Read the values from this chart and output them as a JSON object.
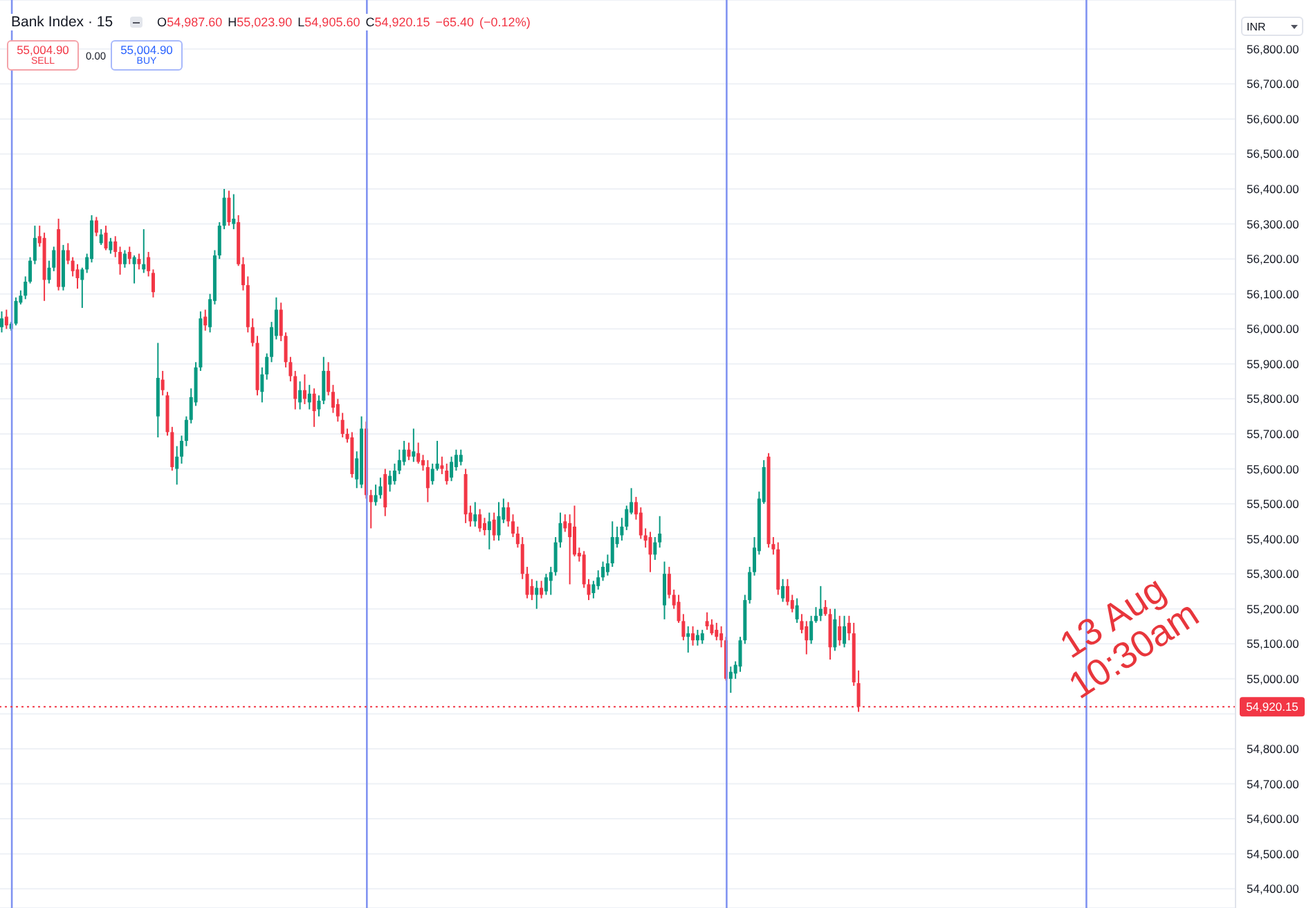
{
  "chart_data": {
    "type": "candlestick",
    "title": "Bank Index · 15",
    "ylabel": "INR",
    "categories": [
      null,
      null,
      null,
      null,
      null,
      null,
      null,
      null,
      null,
      null,
      null,
      null,
      null,
      null,
      null,
      null,
      null,
      null,
      null,
      null,
      null,
      null,
      null,
      null,
      null,
      null,
      null,
      null,
      null,
      null,
      null,
      null,
      null,
      null,
      null,
      null,
      null,
      null,
      null,
      null,
      null,
      null,
      null,
      null,
      null,
      null,
      null,
      null,
      null,
      null,
      null,
      null,
      null,
      null,
      null,
      null,
      null,
      null,
      null,
      null,
      null,
      null,
      null,
      null,
      null,
      null,
      null,
      null,
      null,
      null,
      null,
      null,
      null,
      null,
      null,
      null,
      null,
      null,
      null,
      null,
      null,
      null,
      null,
      null,
      null,
      null,
      null,
      null,
      null,
      null,
      null,
      null,
      null,
      null,
      null,
      null,
      null,
      null,
      null,
      null,
      null,
      null,
      null,
      null,
      null,
      null,
      null,
      null,
      null,
      null,
      null,
      null,
      null,
      null,
      null,
      null,
      null,
      null,
      null,
      null,
      null,
      null,
      null,
      null,
      null,
      null,
      null,
      null,
      null,
      null,
      null,
      null,
      null,
      null,
      null,
      null,
      null,
      null,
      null,
      null,
      null,
      null,
      null,
      null,
      null,
      null,
      null,
      null,
      null,
      null,
      null,
      null,
      null,
      null,
      null,
      null,
      null,
      null,
      null,
      null,
      null,
      null,
      null,
      null,
      null,
      null,
      null,
      null,
      null,
      null,
      null,
      null,
      null,
      null,
      null,
      null,
      null,
      null,
      null,
      null,
      null,
      null,
      null,
      null,
      null,
      null,
      null,
      null,
      null,
      null,
      null,
      null,
      null,
      null,
      null,
      null,
      null,
      null,
      null,
      null,
      null,
      null,
      null,
      null,
      null,
      null,
      null,
      null,
      null,
      null,
      null,
      null,
      null,
      null,
      null,
      null,
      null,
      null,
      null,
      null,
      null,
      null,
      null,
      null,
      null,
      null,
      null,
      null,
      null,
      null,
      null,
      null,
      null,
      null,
      null,
      null,
      null,
      null,
      null,
      null,
      null,
      null,
      null,
      null,
      null,
      null,
      null,
      null,
      null,
      null,
      null,
      null,
      null,
      null,
      null,
      null,
      null,
      null,
      null,
      null,
      null
    ],
    "ohlc": [
      [
        56005,
        56050,
        55990,
        56030
      ],
      [
        56035,
        56055,
        56000,
        56010
      ],
      [
        56000,
        56020,
        55995,
        56015
      ],
      [
        56015,
        56090,
        56010,
        56080
      ],
      [
        56075,
        56110,
        56070,
        56095
      ],
      [
        56095,
        56150,
        56085,
        56135
      ],
      [
        56135,
        56205,
        56130,
        56195
      ],
      [
        56195,
        56295,
        56185,
        56260
      ],
      [
        56265,
        56295,
        56235,
        56245
      ],
      [
        56260,
        56275,
        56080,
        56140
      ],
      [
        56140,
        56195,
        56130,
        56175
      ],
      [
        56175,
        56235,
        56165,
        56225
      ],
      [
        56285,
        56315,
        56110,
        56120
      ],
      [
        56120,
        56240,
        56110,
        56225
      ],
      [
        56225,
        56245,
        56185,
        56195
      ],
      [
        56195,
        56205,
        56150,
        56165
      ],
      [
        56170,
        56185,
        56115,
        56145
      ],
      [
        56140,
        56175,
        56060,
        56170
      ],
      [
        56170,
        56215,
        56160,
        56205
      ],
      [
        56200,
        56325,
        56190,
        56310
      ],
      [
        56310,
        56320,
        56265,
        56275
      ],
      [
        56245,
        56285,
        56240,
        56270
      ],
      [
        56275,
        56295,
        56225,
        56230
      ],
      [
        56225,
        56260,
        56215,
        56250
      ],
      [
        56250,
        56265,
        56205,
        56220
      ],
      [
        56220,
        56235,
        56155,
        56185
      ],
      [
        56185,
        56225,
        56175,
        56215
      ],
      [
        56220,
        56235,
        56185,
        56200
      ],
      [
        56185,
        56210,
        56130,
        56205
      ],
      [
        56200,
        56215,
        56170,
        56185
      ],
      [
        56170,
        56285,
        56160,
        56185
      ],
      [
        56205,
        56220,
        56150,
        56165
      ],
      [
        56160,
        56170,
        56090,
        56105
      ],
      [
        55750,
        55960,
        55690,
        55860
      ],
      [
        55855,
        55880,
        55810,
        55825
      ],
      [
        55810,
        55820,
        55695,
        55705
      ],
      [
        55705,
        55720,
        55595,
        55605
      ],
      [
        55600,
        55665,
        55555,
        55635
      ],
      [
        55635,
        55695,
        55615,
        55680
      ],
      [
        55680,
        55750,
        55665,
        55740
      ],
      [
        55740,
        55830,
        55730,
        55805
      ],
      [
        55790,
        55905,
        55780,
        55890
      ],
      [
        55890,
        56050,
        55880,
        56030
      ],
      [
        56035,
        56055,
        55995,
        56010
      ],
      [
        56005,
        56100,
        55990,
        56085
      ],
      [
        56080,
        56225,
        56070,
        56210
      ],
      [
        56210,
        56305,
        56200,
        56295
      ],
      [
        56295,
        56400,
        56285,
        56375
      ],
      [
        56375,
        56395,
        56295,
        56305
      ],
      [
        56300,
        56385,
        56285,
        56315
      ],
      [
        56305,
        56325,
        56180,
        56185
      ],
      [
        56185,
        56205,
        56110,
        56125
      ],
      [
        56125,
        56150,
        55990,
        56005
      ],
      [
        56005,
        56030,
        55950,
        55960
      ],
      [
        55960,
        55980,
        55810,
        55825
      ],
      [
        55820,
        55890,
        55790,
        55870
      ],
      [
        55870,
        55930,
        55855,
        55920
      ],
      [
        55920,
        56020,
        55905,
        56005
      ],
      [
        55980,
        56090,
        55970,
        56055
      ],
      [
        56055,
        56075,
        55965,
        55980
      ],
      [
        55980,
        55990,
        55890,
        55905
      ],
      [
        55905,
        55920,
        55850,
        55865
      ],
      [
        55865,
        55880,
        55770,
        55800
      ],
      [
        55790,
        55850,
        55770,
        55825
      ],
      [
        55825,
        55870,
        55785,
        55800
      ],
      [
        55790,
        55840,
        55770,
        55815
      ],
      [
        55815,
        55830,
        55720,
        55765
      ],
      [
        55770,
        55810,
        55750,
        55795
      ],
      [
        55795,
        55920,
        55785,
        55880
      ],
      [
        55880,
        55905,
        55810,
        55820
      ],
      [
        55820,
        55840,
        55760,
        55775
      ],
      [
        55785,
        55800,
        55735,
        55750
      ],
      [
        55740,
        55760,
        55690,
        55700
      ],
      [
        55700,
        55715,
        55675,
        55685
      ],
      [
        55690,
        55705,
        55575,
        55585
      ],
      [
        55570,
        55650,
        55545,
        55630
      ],
      [
        55555,
        55750,
        55545,
        55715
      ],
      [
        55715,
        55735,
        55515,
        55525
      ],
      [
        55525,
        55540,
        55430,
        55505
      ],
      [
        55505,
        55555,
        55495,
        55525
      ],
      [
        55525,
        55575,
        55515,
        55550
      ],
      [
        55585,
        55600,
        55465,
        55490
      ],
      [
        55555,
        55595,
        55535,
        55580
      ],
      [
        55565,
        55615,
        55555,
        55595
      ],
      [
        55595,
        55655,
        55585,
        55625
      ],
      [
        55620,
        55680,
        55610,
        55655
      ],
      [
        55655,
        55675,
        55625,
        55635
      ],
      [
        55635,
        55715,
        55620,
        55650
      ],
      [
        55645,
        55675,
        55615,
        55620
      ],
      [
        55625,
        55640,
        55595,
        55610
      ],
      [
        55605,
        55625,
        55505,
        55545
      ],
      [
        55565,
        55615,
        55555,
        55600
      ],
      [
        55600,
        55680,
        55595,
        55615
      ],
      [
        55610,
        55635,
        55585,
        55600
      ],
      [
        55595,
        55615,
        55555,
        55565
      ],
      [
        55575,
        55635,
        55565,
        55620
      ],
      [
        55605,
        55655,
        55595,
        55640
      ],
      [
        55620,
        55655,
        55610,
        55640
      ],
      [
        55585,
        55600,
        55445,
        55470
      ],
      [
        55475,
        55495,
        55435,
        55450
      ],
      [
        55450,
        55505,
        55435,
        55470
      ],
      [
        55470,
        55485,
        55420,
        55430
      ],
      [
        55445,
        55460,
        55410,
        55425
      ],
      [
        55425,
        55475,
        55370,
        55450
      ],
      [
        55455,
        55475,
        55395,
        55410
      ],
      [
        55410,
        55505,
        55395,
        55465
      ],
      [
        55455,
        55515,
        55445,
        55490
      ],
      [
        55490,
        55505,
        55435,
        55450
      ],
      [
        55450,
        55470,
        55405,
        55415
      ],
      [
        55415,
        55435,
        55375,
        55385
      ],
      [
        55385,
        55405,
        55285,
        55300
      ],
      [
        55300,
        55320,
        55230,
        55240
      ],
      [
        55265,
        55285,
        55225,
        55240
      ],
      [
        55240,
        55280,
        55200,
        55260
      ],
      [
        55260,
        55280,
        55230,
        55240
      ],
      [
        55250,
        55300,
        55240,
        55290
      ],
      [
        55280,
        55320,
        55240,
        55305
      ],
      [
        55305,
        55405,
        55295,
        55390
      ],
      [
        55390,
        55475,
        55375,
        55445
      ],
      [
        55450,
        55470,
        55420,
        55430
      ],
      [
        55445,
        55470,
        55270,
        55405
      ],
      [
        55435,
        55495,
        55350,
        55355
      ],
      [
        55360,
        55375,
        55335,
        55350
      ],
      [
        55355,
        55365,
        55260,
        55270
      ],
      [
        55270,
        55285,
        55225,
        55240
      ],
      [
        55245,
        55280,
        55230,
        55270
      ],
      [
        55265,
        55310,
        55255,
        55290
      ],
      [
        55290,
        55335,
        55280,
        55320
      ],
      [
        55305,
        55355,
        55295,
        55330
      ],
      [
        55330,
        55450,
        55320,
        55405
      ],
      [
        55385,
        55435,
        55375,
        55405
      ],
      [
        55410,
        55460,
        55395,
        55435
      ],
      [
        55435,
        55495,
        55425,
        55485
      ],
      [
        55475,
        55545,
        55470,
        55505
      ],
      [
        55505,
        55520,
        55455,
        55470
      ],
      [
        55475,
        55490,
        55400,
        55410
      ],
      [
        55410,
        55430,
        55375,
        55395
      ],
      [
        55405,
        55420,
        55305,
        55355
      ],
      [
        55355,
        55405,
        55340,
        55390
      ],
      [
        55390,
        55465,
        55375,
        55415
      ],
      [
        55210,
        55335,
        55170,
        55300
      ],
      [
        55300,
        55320,
        55230,
        55240
      ],
      [
        55240,
        55255,
        55200,
        55210
      ],
      [
        55220,
        55240,
        55160,
        55165
      ],
      [
        55165,
        55185,
        55110,
        55120
      ],
      [
        55120,
        55150,
        55075,
        55130
      ],
      [
        55130,
        55150,
        55095,
        55110
      ],
      [
        55110,
        55140,
        55095,
        55125
      ],
      [
        55110,
        55140,
        55100,
        55130
      ],
      [
        55165,
        55190,
        55140,
        55150
      ],
      [
        55155,
        55170,
        55125,
        55130
      ],
      [
        55140,
        55160,
        55110,
        55120
      ],
      [
        55130,
        55150,
        55090,
        55110
      ],
      [
        55110,
        55120,
        54995,
        55000
      ],
      [
        55000,
        55035,
        54960,
        55020
      ],
      [
        55015,
        55050,
        55000,
        55040
      ],
      [
        55035,
        55120,
        55020,
        55110
      ],
      [
        55110,
        55240,
        55100,
        55225
      ],
      [
        55225,
        55320,
        55215,
        55305
      ],
      [
        55305,
        55405,
        55295,
        55375
      ],
      [
        55365,
        55535,
        55355,
        55515
      ],
      [
        55505,
        55625,
        55500,
        55605
      ],
      [
        55635,
        55645,
        55375,
        55385
      ],
      [
        55385,
        55405,
        55355,
        55370
      ],
      [
        55370,
        55390,
        55240,
        55255
      ],
      [
        55230,
        55285,
        55220,
        55265
      ],
      [
        55265,
        55285,
        55210,
        55220
      ],
      [
        55225,
        55240,
        55190,
        55200
      ],
      [
        55170,
        55230,
        55160,
        55210
      ],
      [
        55165,
        55185,
        55130,
        55140
      ],
      [
        55150,
        55165,
        55070,
        55110
      ],
      [
        55110,
        55180,
        55100,
        55165
      ],
      [
        55165,
        55205,
        55160,
        55180
      ],
      [
        55180,
        55265,
        55165,
        55200
      ],
      [
        55205,
        55225,
        55180,
        55185
      ],
      [
        55185,
        55200,
        55055,
        55090
      ],
      [
        55090,
        55200,
        55080,
        55170
      ],
      [
        55150,
        55180,
        55095,
        55110
      ],
      [
        55100,
        55180,
        55090,
        55150
      ],
      [
        55160,
        55180,
        55110,
        55130
      ],
      [
        55130,
        55160,
        54980,
        54990
      ],
      [
        54987.6,
        55023.9,
        54905.6,
        54920.15
      ],
      null,
      null,
      null,
      null,
      null,
      null,
      null,
      null,
      null,
      null,
      null,
      null,
      null,
      null,
      null,
      null,
      null,
      null,
      null,
      null,
      null,
      null,
      null,
      null,
      null,
      null,
      null,
      null,
      null,
      null,
      null,
      null,
      null,
      null,
      null,
      null,
      null,
      null,
      null,
      null,
      null,
      null,
      null,
      null,
      null,
      null,
      null,
      null,
      null,
      null,
      null,
      null,
      null,
      null,
      null,
      null,
      null,
      null,
      null,
      null,
      null,
      null,
      null,
      null,
      null,
      null,
      null,
      null,
      null,
      null,
      null,
      null,
      null,
      null,
      null,
      null,
      null,
      null,
      null
    ],
    "colors": [
      "#089981",
      "#f23645",
      "#089981",
      "#089981",
      "#089981",
      "#089981",
      "#089981",
      "#089981",
      "#f23645",
      "#f23645",
      "#089981",
      "#089981",
      "#f23645",
      "#089981",
      "#f23645",
      "#f23645",
      "#f23645",
      "#089981",
      "#089981",
      "#089981",
      "#f23645",
      "#089981",
      "#f23645",
      "#089981",
      "#f23645",
      "#f23645",
      "#089981",
      "#f23645",
      "#089981",
      "#f23645",
      "#089981",
      "#f23645",
      "#f23645",
      "#089981",
      "#f23645",
      "#f23645",
      "#f23645",
      "#089981",
      "#089981",
      "#089981",
      "#089981",
      "#089981",
      "#089981",
      "#f23645",
      "#089981",
      "#089981",
      "#089981",
      "#089981",
      "#f23645",
      "#089981",
      "#f23645",
      "#f23645",
      "#f23645",
      "#f23645",
      "#f23645",
      "#089981",
      "#089981",
      "#089981",
      "#089981",
      "#f23645",
      "#f23645",
      "#f23645",
      "#f23645",
      "#089981",
      "#f23645",
      "#089981",
      "#f23645",
      "#089981",
      "#089981",
      "#f23645",
      "#f23645",
      "#f23645",
      "#f23645",
      "#f23645",
      "#f23645",
      "#089981",
      "#089981",
      "#f23645",
      "#f23645",
      "#089981",
      "#089981",
      "#f23645",
      "#089981",
      "#089981",
      "#089981",
      "#089981",
      "#f23645",
      "#089981",
      "#f23645",
      "#f23645",
      "#f23645",
      "#089981",
      "#089981",
      "#f23645",
      "#f23645",
      "#089981",
      "#089981",
      "#089981",
      "#f23645",
      "#f23645",
      "#089981",
      "#f23645",
      "#f23645",
      "#089981",
      "#f23645",
      "#089981",
      "#089981",
      "#f23645",
      "#f23645",
      "#f23645",
      "#f23645",
      "#f23645",
      "#f23645",
      "#089981",
      "#f23645",
      "#089981",
      "#089981",
      "#089981",
      "#089981",
      "#f23645",
      "#f23645",
      "#f23645",
      "#f23645",
      "#f23645",
      "#f23645",
      "#089981",
      "#089981",
      "#089981",
      "#089981",
      "#089981",
      "#089981",
      "#089981",
      "#089981",
      "#089981",
      "#f23645",
      "#f23645",
      "#f23645",
      "#f23645",
      "#089981",
      "#089981",
      "#089981",
      "#f23645",
      "#f23645",
      "#f23645",
      "#f23645",
      "#089981",
      "#f23645",
      "#089981",
      "#089981",
      "#f23645",
      "#f23645",
      "#f23645",
      "#f23645",
      "#f23645",
      "#089981",
      "#089981",
      "#089981",
      "#089981",
      "#089981",
      "#089981",
      "#089981",
      "#089981",
      "#f23645",
      "#f23645",
      "#f23645",
      "#089981",
      "#f23645",
      "#f23645",
      "#089981",
      "#f23645",
      "#f23645",
      "#089981",
      "#089981",
      "#089981",
      "#f23645",
      "#f23645",
      "#089981",
      "#f23645",
      "#089981",
      "#f23645",
      "#f23645",
      "#f23645",
      null,
      null,
      null,
      null,
      null,
      null,
      null,
      null,
      null,
      null,
      null,
      null,
      null,
      null,
      null,
      null,
      null,
      null,
      null,
      null,
      null,
      null,
      null,
      null,
      null,
      null,
      null,
      null,
      null,
      null,
      null,
      null,
      null,
      null,
      null,
      null,
      null,
      null,
      null,
      null,
      null,
      null,
      null,
      null,
      null,
      null,
      null,
      null,
      null,
      null,
      null,
      null,
      null,
      null,
      null,
      null,
      null,
      null,
      null,
      null,
      null,
      null,
      null,
      null,
      null,
      null,
      null,
      null,
      null,
      null,
      null,
      null,
      null,
      null,
      null,
      null,
      null,
      null,
      null
    ],
    "ylim": [
      54345,
      56940
    ],
    "yticks": [
      {
        "value": 54400,
        "label": "54,400.00"
      },
      {
        "value": 54500,
        "label": "54,500.00"
      },
      {
        "value": 54600,
        "label": "54,600.00"
      },
      {
        "value": 54700,
        "label": "54,700.00"
      },
      {
        "value": 54800,
        "label": "54,800.00"
      },
      {
        "value": 54900,
        "label": null
      },
      {
        "value": 55000,
        "label": "55,000.00"
      },
      {
        "value": 55100,
        "label": "55,100.00"
      },
      {
        "value": 55200,
        "label": "55,200.00"
      },
      {
        "value": 55300,
        "label": "55,300.00"
      },
      {
        "value": 55400,
        "label": "55,400.00"
      },
      {
        "value": 55500,
        "label": "55,500.00"
      },
      {
        "value": 55600,
        "label": "55,600.00"
      },
      {
        "value": 55700,
        "label": "55,700.00"
      },
      {
        "value": 55800,
        "label": "55,800.00"
      },
      {
        "value": 55900,
        "label": "55,900.00"
      },
      {
        "value": 56000,
        "label": "56,000.00"
      },
      {
        "value": 56100,
        "label": "56,100.00"
      },
      {
        "value": 56200,
        "label": "56,200.00"
      },
      {
        "value": 56300,
        "label": "56,300.00"
      },
      {
        "value": 56400,
        "label": "56,400.00"
      },
      {
        "value": 56500,
        "label": "56,500.00"
      },
      {
        "value": 56600,
        "label": "56,600.00"
      },
      {
        "value": 56700,
        "label": "56,700.00"
      },
      {
        "value": 56800,
        "label": "56,800.00"
      }
    ],
    "ref_lines": [
      {
        "axis": "y",
        "value": 54920.15,
        "label": "54,920.15",
        "color": "#f23645",
        "line_style": "dotted"
      }
    ],
    "annotations": [
      "O54,987.60 H55,023.90 L54,905.60 C54,920.15 −65.40 (−0.12%)",
      "55,004.90 SELL",
      "0.00",
      "55,004.90 BUY",
      "13 Aug 10:30am"
    ],
    "grid": "y",
    "tick_labels": "y"
  }
}
